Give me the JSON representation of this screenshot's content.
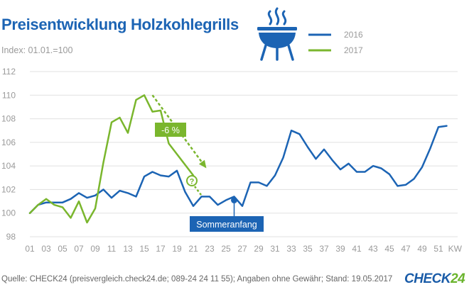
{
  "header": {
    "title": "Preisentwicklung Holzkohlegrills",
    "subtitle": "Index: 01.01.=100",
    "icon": "grill-icon"
  },
  "footer": {
    "source": "Quelle: CHECK24 (preisvergleich.check24.de; 089-24 24 11 55); Angaben ohne Gewähr; Stand: 19.05.2017",
    "logo_text": "CHECK",
    "logo_number": "24"
  },
  "colors": {
    "series_2016": "#1c64b4",
    "series_2017": "#7ab62d",
    "grid": "#e1e1e1",
    "axis_text": "#9a9a9a",
    "callout_bg": "#1c64b4"
  },
  "chart_data": {
    "type": "line",
    "xlabel": "KW",
    "ylabel": "",
    "xlim": [
      1,
      52
    ],
    "ylim": [
      98,
      112
    ],
    "y_ticks": [
      98,
      100,
      102,
      104,
      106,
      108,
      110,
      112
    ],
    "x_ticks": [
      "01",
      "03",
      "05",
      "07",
      "09",
      "11",
      "13",
      "15",
      "17",
      "19",
      "21",
      "23",
      "25",
      "27",
      "29",
      "31",
      "33",
      "35",
      "37",
      "39",
      "41",
      "43",
      "45",
      "47",
      "49",
      "51"
    ],
    "grid": true,
    "legend": {
      "position": "top-right",
      "entries": [
        "2016",
        "2017"
      ]
    },
    "series": [
      {
        "name": "2016",
        "x": [
          1,
          2,
          3,
          4,
          5,
          6,
          7,
          8,
          9,
          10,
          11,
          12,
          13,
          14,
          15,
          16,
          17,
          18,
          19,
          20,
          21,
          22,
          23,
          24,
          25,
          26,
          27,
          28,
          29,
          30,
          31,
          32,
          33,
          34,
          35,
          36,
          37,
          38,
          39,
          40,
          41,
          42,
          43,
          44,
          45,
          46,
          47,
          48,
          49,
          50,
          51,
          52
        ],
        "values": [
          100.0,
          100.7,
          100.9,
          100.9,
          100.9,
          101.2,
          101.7,
          101.3,
          101.5,
          102.0,
          101.3,
          101.9,
          101.7,
          101.4,
          103.1,
          103.5,
          103.2,
          103.1,
          103.6,
          101.8,
          100.6,
          101.4,
          101.4,
          100.7,
          101.1,
          101.4,
          100.6,
          102.6,
          102.6,
          102.3,
          103.2,
          104.7,
          107.0,
          106.7,
          105.6,
          104.6,
          105.4,
          104.5,
          103.7,
          104.2,
          103.5,
          103.5,
          104.0,
          103.8,
          103.3,
          102.3,
          102.4,
          102.9,
          103.9,
          105.5,
          107.3,
          107.4
        ]
      },
      {
        "name": "2017",
        "x": [
          1,
          2,
          3,
          4,
          5,
          6,
          7,
          8,
          9,
          10,
          11,
          12,
          13,
          14,
          15,
          16,
          17,
          18,
          19,
          20,
          21
        ],
        "values": [
          100.0,
          100.7,
          101.2,
          100.7,
          100.5,
          99.6,
          101.0,
          99.2,
          100.4,
          104.3,
          107.7,
          108.1,
          106.8,
          109.6,
          110.0,
          108.6,
          108.7,
          105.9,
          105.0,
          104.1,
          103.2
        ],
        "forecast": {
          "x": [
            16,
            22.5
          ],
          "values": [
            110.0,
            103.9
          ]
        }
      }
    ],
    "annotations": {
      "change_label": "-6 %",
      "question_mark": "?",
      "event_label": "Sommeranfang",
      "event_x": 26,
      "event_y": 101.1
    }
  }
}
